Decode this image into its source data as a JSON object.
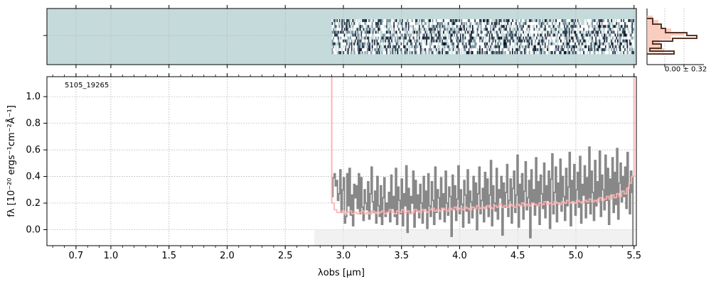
{
  "chart_data": [
    {
      "type": "heatmap",
      "panel": "2d-spectrum",
      "xlim": [
        0.45,
        5.52
      ],
      "grid": true,
      "background_color": "#c5dbdb",
      "data_start_x": 2.9,
      "data_end_x": 5.5,
      "colors": [
        "#ffffff",
        "#c5dbdb",
        "#7f94a3",
        "#2f3d4f",
        "#0a1020"
      ]
    },
    {
      "type": "line",
      "panel": "1d-spectrum",
      "annotation": "5105_19265",
      "xlabel": "λobs [μm]",
      "ylabel": "fλ [10⁻²⁰ ergs⁻¹cm⁻²Å⁻¹]",
      "xlim": [
        0.45,
        5.52
      ],
      "ylim": [
        -0.12,
        1.15
      ],
      "x_ticks": [
        {
          "value": 0.7,
          "label": "0.7"
        },
        {
          "value": 1.0,
          "label": "1.0"
        },
        {
          "value": 1.5,
          "label": "1.5"
        },
        {
          "value": 2.0,
          "label": "2.0"
        },
        {
          "value": 2.5,
          "label": "2.5"
        },
        {
          "value": 3.0,
          "label": "3.0"
        },
        {
          "value": 3.5,
          "label": "3.5"
        },
        {
          "value": 4.0,
          "label": "4.0"
        },
        {
          "value": 4.5,
          "label": "4.5"
        },
        {
          "value": 5.0,
          "label": "5.0"
        },
        {
          "value": 5.5,
          "label": "5.5"
        }
      ],
      "y_ticks": [
        {
          "value": 0.0,
          "label": "0.0"
        },
        {
          "value": 0.2,
          "label": "0.2"
        },
        {
          "value": 0.4,
          "label": "0.4"
        },
        {
          "value": 0.6,
          "label": "0.6"
        },
        {
          "value": 0.8,
          "label": "0.8"
        },
        {
          "value": 1.0,
          "label": "1.0"
        }
      ],
      "grid": true,
      "series": [
        {
          "color": "#888888",
          "style": "steps",
          "x_start": 2.9,
          "x_end": 5.5,
          "values": [
            0.25,
            0.39,
            0.42,
            0.33,
            0.37,
            0.22,
            0.27,
            0.45,
            0.13,
            0.3,
            0.39,
            0.05,
            0.1,
            0.42,
            0.18,
            0.46,
            0.11,
            0.26,
            0.03,
            0.34,
            0.24,
            0.33,
            0.16,
            0.42,
            0.12,
            0.39,
            0.17,
            0.07,
            0.3,
            0.2,
            0.15,
            0.36,
            0.08,
            0.27,
            0.47,
            0.21,
            0.13,
            0.29,
            0.05,
            0.4,
            0.18,
            0.1,
            0.33,
            0.04,
            0.24,
            0.39,
            0.1,
            0.2,
            0.14,
            0.28,
            0.06,
            0.41,
            0.16,
            0.25,
            0.1,
            0.46,
            0.04,
            0.32,
            0.22,
            0.12,
            0.38,
            0.03,
            0.27,
            0.18,
            0.48,
            -0.02,
            0.31,
            0.12,
            0.25,
            0.2,
            0.44,
            0.02,
            0.37,
            0.14,
            0.26,
            0.09,
            0.34,
            0.2,
            0.05,
            0.4,
            0.16,
            0.29,
            0.01,
            0.42,
            0.18,
            0.1,
            0.36,
            0.22,
            0.04,
            0.47,
            0.13,
            0.3,
            0.24,
            0.08,
            0.39,
            0.17,
            0.27,
            0.06,
            0.44,
            0.2,
            0.11,
            0.32,
            0.25,
            -0.05,
            0.41,
            0.15,
            0.33,
            0.07,
            0.23,
            0.48,
            0.12,
            0.3,
            0.19,
            0.02,
            0.37,
            0.26,
            0.14,
            0.45,
            0.05,
            0.29,
            0.21,
            0.09,
            0.4,
            0.16,
            0.35,
            0.0,
            0.27,
            0.47,
            0.12,
            0.22,
            0.31,
            0.06,
            0.43,
            0.18,
            0.38,
            0.1,
            0.26,
            0.52,
            0.03,
            0.33,
            0.2,
            0.14,
            0.46,
            0.08,
            0.3,
            0.24,
            0.4,
            -0.04,
            0.35,
            0.17,
            0.28,
            0.49,
            0.1,
            0.22,
            0.38,
            0.05,
            0.31,
            0.44,
            0.13,
            0.26,
            0.56,
            0.02,
            0.34,
            0.19,
            0.42,
            0.08,
            0.29,
            0.51,
            0.15,
            0.24,
            0.37,
            -0.06,
            0.45,
            0.2,
            0.3,
            0.11,
            0.54,
            0.18,
            0.36,
            0.04,
            0.41,
            0.27,
            0.16,
            0.5,
            0.09,
            0.33,
            0.22,
            0.44,
            0.01,
            0.38,
            0.57,
            0.12,
            0.28,
            0.47,
            0.06,
            0.35,
            0.21,
            0.53,
            0.14,
            0.4,
            0.25,
            0.07,
            0.46,
            0.18,
            0.32,
            0.58,
            0.03,
            0.37,
            0.22,
            0.49,
            0.11,
            0.3,
            0.43,
            0.17,
            0.55,
            0.05,
            0.34,
            0.26,
            0.48,
            0.09,
            0.39,
            0.2,
            0.62,
            0.12,
            0.44,
            0.28,
            0.07,
            0.52,
            0.18,
            0.36,
            0.24,
            0.59,
            0.1,
            0.41,
            0.3,
            0.15,
            0.56,
            0.22,
            0.46,
            0.04,
            0.38,
            0.27,
            0.54,
            0.13,
            0.43,
            0.19,
            0.61,
            0.08,
            0.35,
            0.5,
            0.21,
            0.4,
            0.25,
            0.47,
            0.16,
            0.58,
            0.33,
            0.12,
            0.44,
            0.28,
            0.4
          ]
        },
        {
          "color": "#ffb3b3",
          "style": "steps",
          "x_start": 2.9,
          "x_end": 5.5,
          "values": [
            0.2,
            0.15,
            0.13,
            0.13,
            0.14,
            0.12,
            0.13,
            0.14,
            0.12,
            0.13,
            0.12,
            0.13,
            0.14,
            0.12,
            0.13,
            0.12,
            0.14,
            0.13,
            0.12,
            0.13,
            0.14,
            0.12,
            0.13,
            0.15,
            0.13,
            0.12,
            0.14,
            0.13,
            0.15,
            0.13,
            0.14,
            0.12,
            0.13,
            0.15,
            0.14,
            0.13,
            0.15,
            0.14,
            0.13,
            0.15,
            0.16,
            0.14,
            0.15,
            0.14,
            0.16,
            0.15,
            0.14,
            0.16,
            0.15,
            0.17,
            0.15,
            0.16,
            0.15,
            0.17,
            0.16,
            0.15,
            0.17,
            0.16,
            0.18,
            0.16,
            0.17,
            0.16,
            0.18,
            0.17,
            0.16,
            0.18,
            0.17,
            0.19,
            0.17,
            0.18,
            0.17,
            0.19,
            0.18,
            0.17,
            0.19,
            0.18,
            0.2,
            0.18,
            0.19,
            0.18,
            0.2,
            0.19,
            0.18,
            0.2,
            0.19,
            0.21,
            0.19,
            0.2,
            0.19,
            0.21,
            0.2,
            0.19,
            0.21,
            0.2,
            0.22,
            0.2,
            0.21,
            0.2,
            0.22,
            0.21,
            0.2,
            0.22,
            0.21,
            0.23,
            0.21,
            0.22,
            0.21,
            0.24,
            0.22,
            0.23,
            0.25,
            0.23,
            0.26,
            0.24,
            0.27,
            0.25,
            0.29,
            0.27,
            0.31,
            0.35,
            0.4
          ]
        }
      ]
    }
  ],
  "labels": {
    "object_id": "5105_19265",
    "x_axis_label": "λobs [μm]",
    "y_axis_label": "fλ [10⁻²⁰ ergs⁻¹cm⁻²Å⁻¹]",
    "profile_annotation": "0.00 ± 0.32"
  }
}
